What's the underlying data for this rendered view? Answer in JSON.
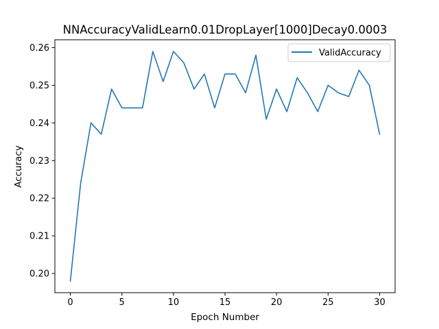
{
  "chart_data": {
    "type": "line",
    "title": "NNAccuracyValidLearn0.01DropLayer[1000]Decay0.0003",
    "xlabel": "Epoch Number",
    "ylabel": "Accuracy",
    "xlim": [
      -1.5,
      31.5
    ],
    "ylim": [
      0.1949,
      0.2621
    ],
    "xticks": [
      0,
      5,
      10,
      15,
      20,
      25,
      30
    ],
    "xtick_labels": [
      "0",
      "5",
      "10",
      "15",
      "20",
      "25",
      "30"
    ],
    "yticks": [
      0.2,
      0.21,
      0.22,
      0.23,
      0.24,
      0.25,
      0.26
    ],
    "ytick_labels": [
      "0.20",
      "0.21",
      "0.22",
      "0.23",
      "0.24",
      "0.25",
      "0.26"
    ],
    "grid": false,
    "legend_position": "top-right",
    "series": [
      {
        "name": "ValidAccuracy",
        "color": "#1f77b4",
        "x": [
          0,
          1,
          2,
          3,
          4,
          5,
          6,
          7,
          8,
          9,
          10,
          11,
          12,
          13,
          14,
          15,
          16,
          17,
          18,
          19,
          20,
          21,
          22,
          23,
          24,
          25,
          26,
          27,
          28,
          29,
          30
        ],
        "y": [
          0.198,
          0.224,
          0.24,
          0.237,
          0.249,
          0.244,
          0.244,
          0.244,
          0.259,
          0.251,
          0.259,
          0.256,
          0.249,
          0.253,
          0.244,
          0.253,
          0.253,
          0.248,
          0.258,
          0.241,
          0.249,
          0.243,
          0.252,
          0.248,
          0.243,
          0.25,
          0.248,
          0.247,
          0.254,
          0.25,
          0.237
        ]
      }
    ]
  }
}
